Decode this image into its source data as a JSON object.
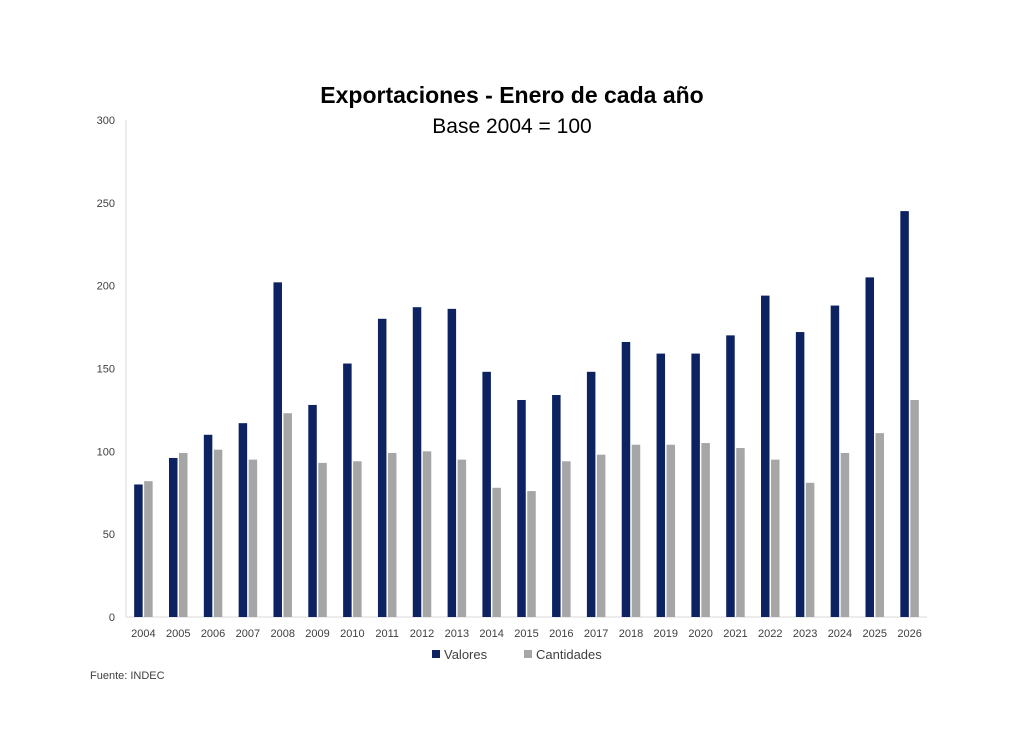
{
  "chart_data": {
    "type": "bar",
    "title": "Exportaciones - Enero de cada año",
    "subtitle": "Base 2004 = 100",
    "categories": [
      "2004",
      "2005",
      "2006",
      "2007",
      "2008",
      "2009",
      "2010",
      "2011",
      "2012",
      "2013",
      "2014",
      "2015",
      "2016",
      "2017",
      "2018",
      "2019",
      "2020",
      "2021",
      "2022",
      "2023",
      "2024",
      "2025",
      "2026"
    ],
    "series": [
      {
        "name": "Valores",
        "color": "#0d2260",
        "values": [
          80,
          96,
          110,
          117,
          202,
          128,
          153,
          180,
          187,
          186,
          148,
          131,
          134,
          148,
          166,
          159,
          159,
          170,
          194,
          172,
          188,
          205,
          245
        ]
      },
      {
        "name": "Cantidades",
        "color": "#a6a6a6",
        "values": [
          82,
          99,
          101,
          95,
          123,
          93,
          94,
          99,
          100,
          95,
          78,
          76,
          94,
          98,
          104,
          104,
          105,
          102,
          95,
          81,
          99,
          111,
          131
        ]
      }
    ],
    "yticks": [
      0,
      50,
      100,
      150,
      200,
      250,
      300
    ],
    "ylim": [
      0,
      300
    ],
    "grid": false,
    "legend": "bottom-center"
  },
  "source": "Fuente: INDEC"
}
